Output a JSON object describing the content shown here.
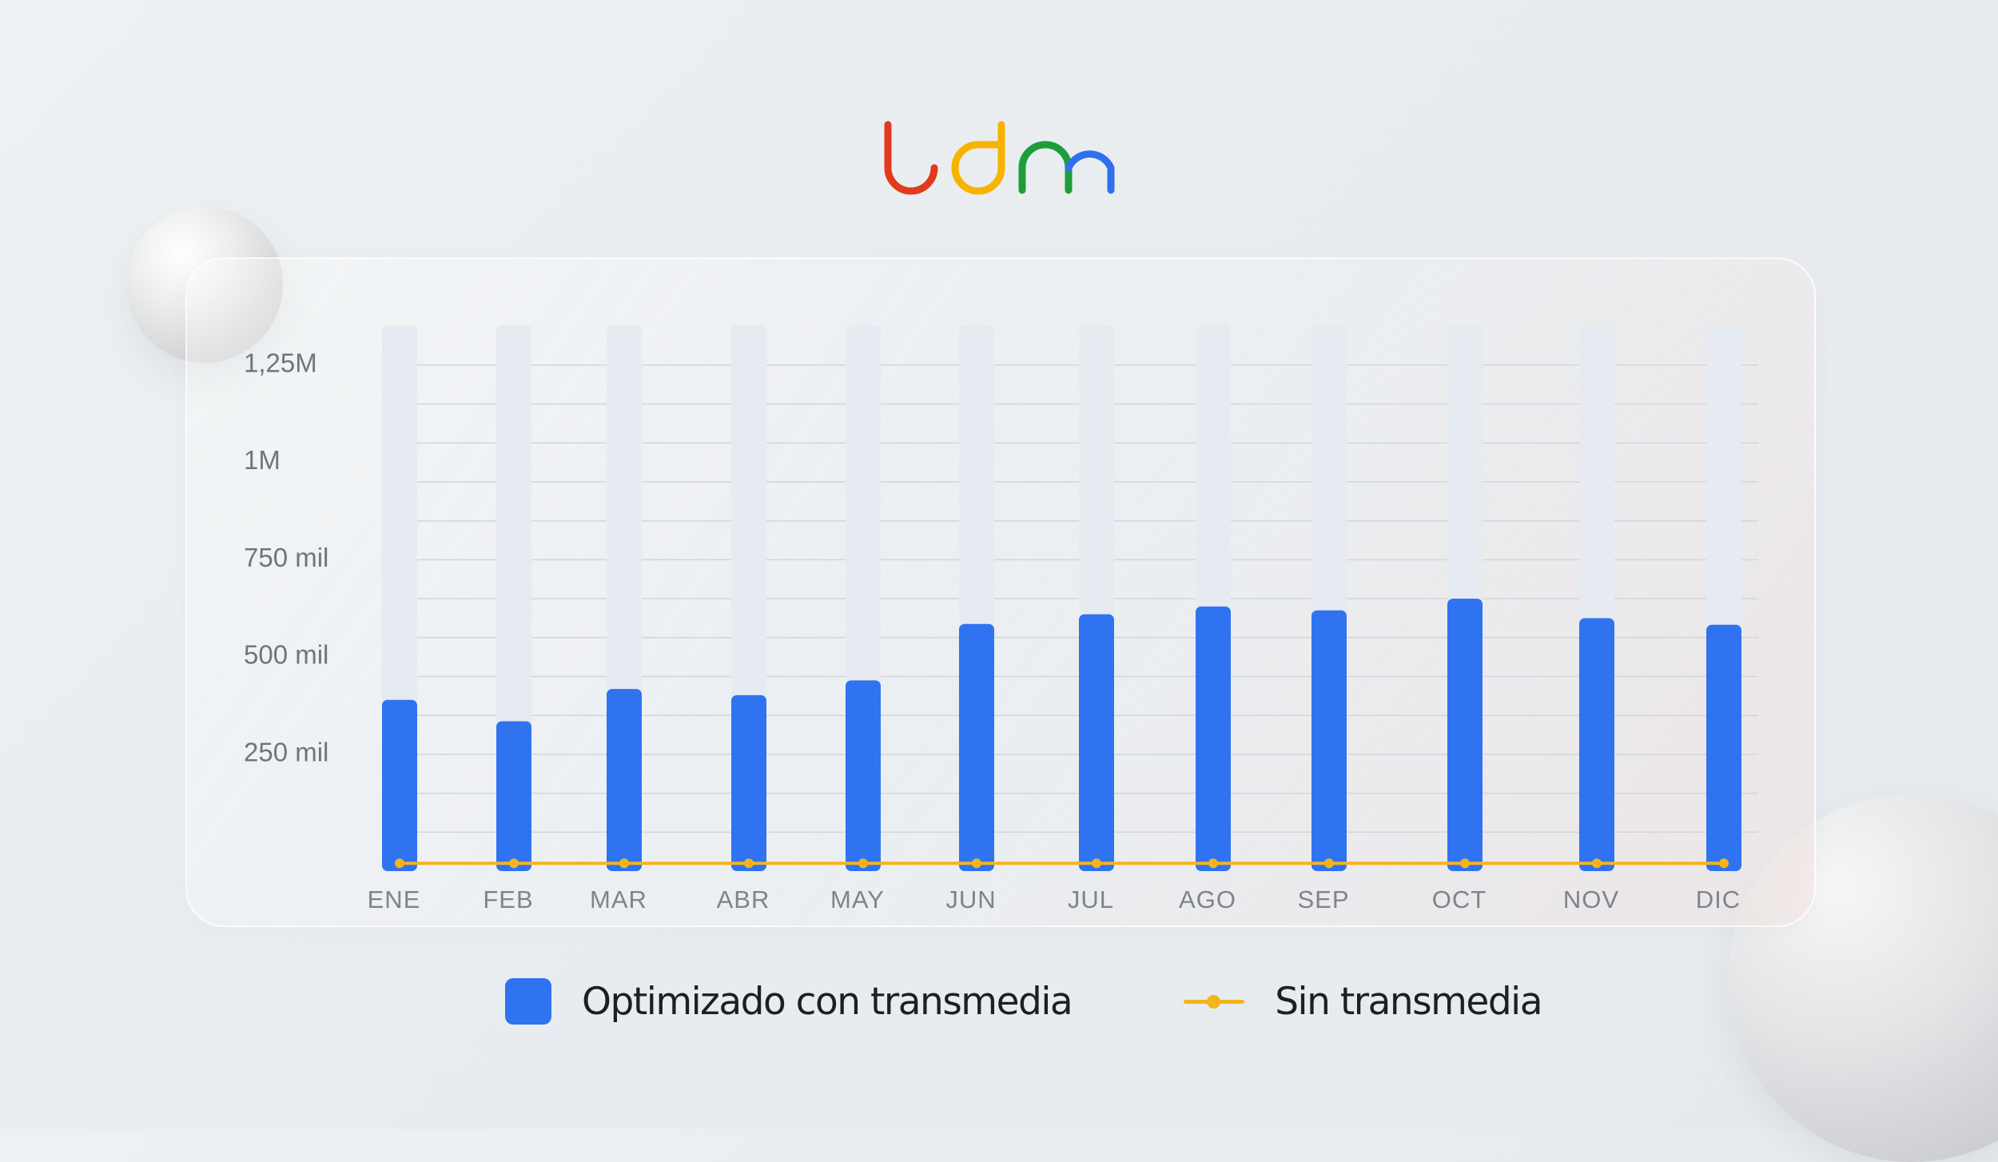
{
  "brand": {
    "name": "udm",
    "colors": [
      "#e23a1d",
      "#f7b300",
      "#1f9d3a",
      "#2f6ff0"
    ]
  },
  "colors": {
    "bar": "#2f73f1",
    "track": "#e6ebf1",
    "line": "#f5b41b",
    "grid": "#d2d6db"
  },
  "chart_data": {
    "type": "bar",
    "categories": [
      "ENE",
      "FEB",
      "MAR",
      "ABR",
      "MAY",
      "JUN",
      "JUL",
      "AGO",
      "SEP",
      "OCT",
      "NOV",
      "DIC"
    ],
    "series": [
      {
        "name": "Optimizado con transmedia",
        "type": "bar",
        "values": [
          440000,
          385000,
          468000,
          452000,
          490000,
          635000,
          660000,
          680000,
          670000,
          700000,
          650000,
          633000
        ]
      },
      {
        "name": "Sin transmedia",
        "type": "line",
        "values": [
          20000,
          20000,
          20000,
          20000,
          20000,
          20000,
          20000,
          20000,
          20000,
          20000,
          20000,
          20000
        ]
      }
    ],
    "y_ticks": [
      {
        "value": 250000,
        "label": "250 mil"
      },
      {
        "value": 500000,
        "label": "500 mil"
      },
      {
        "value": 750000,
        "label": "750 mil"
      },
      {
        "value": 1000000,
        "label": "1M"
      },
      {
        "value": 1250000,
        "label": "1,25M"
      }
    ],
    "ylim": [
      0,
      1400000
    ],
    "title": "",
    "xlabel": "",
    "ylabel": "",
    "grid": true,
    "legend_position": "bottom"
  },
  "legend": {
    "bar_label": "Optimizado con transmedia",
    "line_label": "Sin transmedia"
  }
}
